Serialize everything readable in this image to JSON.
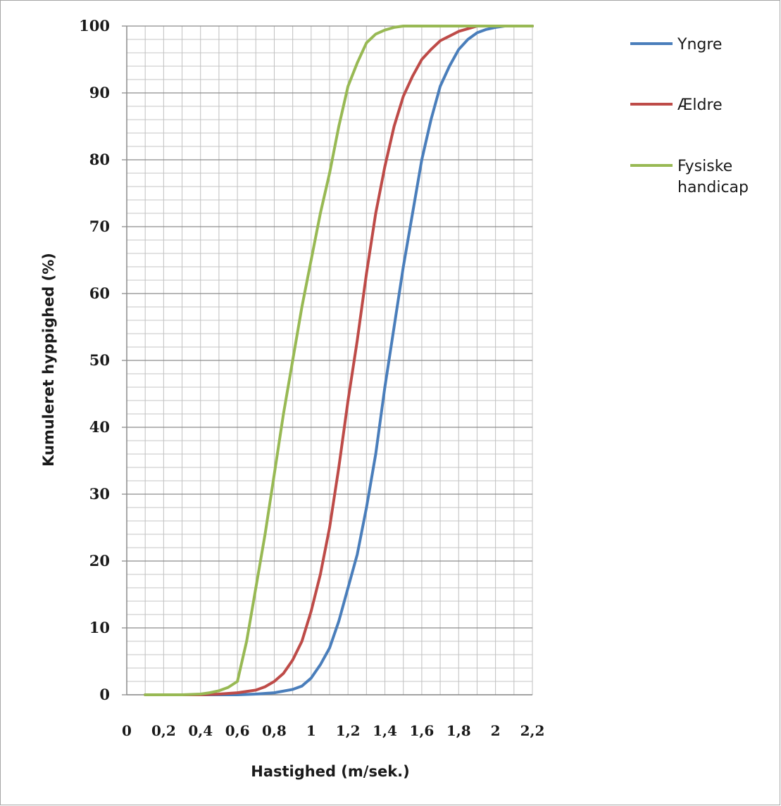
{
  "chart_data": {
    "type": "line",
    "title": "",
    "xlabel": "Hastighed (m/sek.)",
    "ylabel": "Kumuleret hyppighed (%)",
    "xlim": [
      0,
      2.2
    ],
    "ylim": [
      0,
      100
    ],
    "x_major_ticks": [
      0,
      0.2,
      0.4,
      0.6,
      0.8,
      1,
      1.2,
      1.4,
      1.6,
      1.8,
      2,
      2.2
    ],
    "x_tick_labels": [
      "0",
      "0,2",
      "0,4",
      "0,6",
      "0,8",
      "1",
      "1,2",
      "1,4",
      "1,6",
      "1,8",
      "2",
      "2,2"
    ],
    "y_major_ticks": [
      0,
      10,
      20,
      30,
      40,
      50,
      60,
      70,
      80,
      90,
      100
    ],
    "y_tick_labels": [
      "0",
      "10",
      "20",
      "30",
      "40",
      "50",
      "60",
      "70",
      "80",
      "90",
      "100"
    ],
    "x_minor_step": 0.1,
    "y_minor_step": 2,
    "grid": true,
    "legend_position": "right",
    "series": [
      {
        "name": "Yngre",
        "color": "#4a7ebb",
        "points": [
          [
            0.1,
            0
          ],
          [
            0.4,
            0
          ],
          [
            0.6,
            0
          ],
          [
            0.7,
            0.1
          ],
          [
            0.8,
            0.3
          ],
          [
            0.9,
            0.8
          ],
          [
            0.95,
            1.3
          ],
          [
            1.0,
            2.5
          ],
          [
            1.05,
            4.5
          ],
          [
            1.1,
            7
          ],
          [
            1.15,
            11
          ],
          [
            1.2,
            16
          ],
          [
            1.25,
            21
          ],
          [
            1.3,
            28
          ],
          [
            1.35,
            36
          ],
          [
            1.4,
            46
          ],
          [
            1.45,
            55
          ],
          [
            1.5,
            64
          ],
          [
            1.55,
            72
          ],
          [
            1.6,
            80
          ],
          [
            1.65,
            86
          ],
          [
            1.7,
            91
          ],
          [
            1.75,
            94
          ],
          [
            1.8,
            96.5
          ],
          [
            1.85,
            98
          ],
          [
            1.9,
            99
          ],
          [
            1.95,
            99.5
          ],
          [
            2.0,
            99.8
          ],
          [
            2.05,
            100
          ],
          [
            2.2,
            100
          ]
        ]
      },
      {
        "name": "Ældre",
        "color": "#be4b48",
        "points": [
          [
            0.1,
            0
          ],
          [
            0.4,
            0
          ],
          [
            0.5,
            0.1
          ],
          [
            0.6,
            0.3
          ],
          [
            0.7,
            0.7
          ],
          [
            0.75,
            1.2
          ],
          [
            0.8,
            2
          ],
          [
            0.85,
            3.2
          ],
          [
            0.9,
            5.2
          ],
          [
            0.95,
            8
          ],
          [
            1.0,
            12.5
          ],
          [
            1.05,
            18
          ],
          [
            1.1,
            25
          ],
          [
            1.15,
            34
          ],
          [
            1.2,
            44
          ],
          [
            1.25,
            53
          ],
          [
            1.3,
            63
          ],
          [
            1.35,
            72
          ],
          [
            1.4,
            79
          ],
          [
            1.45,
            85
          ],
          [
            1.5,
            89.5
          ],
          [
            1.55,
            92.5
          ],
          [
            1.6,
            95
          ],
          [
            1.65,
            96.5
          ],
          [
            1.7,
            97.8
          ],
          [
            1.75,
            98.5
          ],
          [
            1.8,
            99.2
          ],
          [
            1.85,
            99.6
          ],
          [
            1.9,
            100
          ],
          [
            2.2,
            100
          ]
        ]
      },
      {
        "name": "Fysiske handicap",
        "color": "#98b954",
        "points": [
          [
            0.1,
            0
          ],
          [
            0.3,
            0
          ],
          [
            0.4,
            0.1
          ],
          [
            0.45,
            0.3
          ],
          [
            0.5,
            0.6
          ],
          [
            0.55,
            1.1
          ],
          [
            0.6,
            2
          ],
          [
            0.65,
            8
          ],
          [
            0.7,
            16
          ],
          [
            0.75,
            24
          ],
          [
            0.8,
            33
          ],
          [
            0.85,
            42
          ],
          [
            0.9,
            50
          ],
          [
            0.95,
            58
          ],
          [
            1.0,
            65
          ],
          [
            1.05,
            72
          ],
          [
            1.1,
            78
          ],
          [
            1.15,
            85
          ],
          [
            1.2,
            91
          ],
          [
            1.25,
            94.5
          ],
          [
            1.3,
            97.5
          ],
          [
            1.35,
            98.8
          ],
          [
            1.4,
            99.4
          ],
          [
            1.45,
            99.8
          ],
          [
            1.5,
            100
          ],
          [
            2.2,
            100
          ]
        ]
      }
    ]
  }
}
